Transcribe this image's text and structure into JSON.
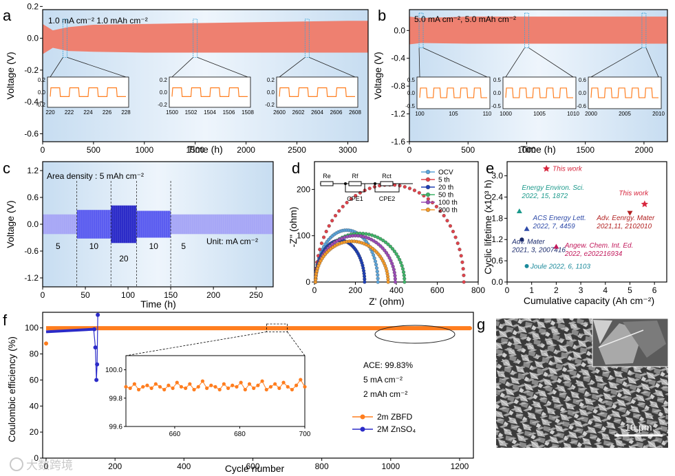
{
  "panels": {
    "a": {
      "letter": "a"
    },
    "b": {
      "letter": "b"
    },
    "c": {
      "letter": "c"
    },
    "d": {
      "letter": "d"
    },
    "e": {
      "letter": "e"
    },
    "f": {
      "letter": "f"
    },
    "g": {
      "letter": "g"
    }
  },
  "colors": {
    "salmon": "#ee8070",
    "orange": "#ff7d1e",
    "blue": "#2b2bc8",
    "bg_blue": "#cfe2f3",
    "bg_blue_light": "#eef5fc",
    "purple": "#5a5cf0",
    "lavender": "#a6a6f6"
  },
  "chart_data": [
    {
      "id": "a",
      "type": "line",
      "annotation": "1.0 mA cm⁻² 1.0 mAh cm⁻²",
      "xlabel": "Time (h)",
      "ylabel": "Voltage (V)",
      "xlim": [
        0,
        3200
      ],
      "ylim": [
        -0.65,
        0.18
      ],
      "xticks": [
        0,
        500,
        1000,
        1500,
        2000,
        2500,
        3000
      ],
      "yticks": [
        -0.6,
        -0.4,
        -0.2,
        0.0,
        0.2
      ],
      "yticklabels": [
        "-0.6",
        "-0.4",
        "-0.2",
        "0.0",
        "0.2"
      ],
      "envelope": {
        "x": [
          0,
          100,
          250,
          500,
          1000,
          1500,
          2000,
          2500,
          3000,
          3200
        ],
        "upper": [
          0.09,
          0.05,
          0.07,
          0.085,
          0.09,
          0.095,
          0.1,
          0.105,
          0.11,
          0.11
        ],
        "lower": [
          -0.1,
          -0.06,
          -0.08,
          -0.085,
          -0.09,
          -0.09,
          -0.09,
          -0.09,
          -0.09,
          -0.09
        ]
      },
      "insets": [
        {
          "xlim": [
            220,
            228
          ],
          "xticks": [
            "220",
            "222",
            "224",
            "226",
            "228"
          ],
          "yticks": [
            "0.2",
            "0.0",
            "-0.2"
          ],
          "amp": 0.1
        },
        {
          "xlim": [
            1500,
            1508
          ],
          "xticks": [
            "1500",
            "1502",
            "1504",
            "1506",
            "1508"
          ],
          "yticks": [
            "0.2",
            "0.0",
            "-0.2"
          ],
          "amp": 0.1
        },
        {
          "xlim": [
            2600,
            2608
          ],
          "xticks": [
            "2600",
            "2602",
            "2604",
            "2606",
            "2608"
          ],
          "yticks": [
            "0.2",
            "0.0",
            "-0.2"
          ],
          "amp": 0.1
        }
      ]
    },
    {
      "id": "b",
      "type": "line",
      "annotation": "5.0 mA cm⁻², 5.0 mAh cm⁻²",
      "xlabel": "Time (h)",
      "ylabel": "Voltage (V)",
      "xlim": [
        0,
        2200
      ],
      "ylim": [
        -1.6,
        0.3
      ],
      "xticks": [
        0,
        500,
        1000,
        1500,
        2000
      ],
      "yticks": [
        -1.6,
        -1.2,
        -0.8,
        -0.4,
        0.0
      ],
      "yticklabels": [
        "-1.6",
        "-1.2",
        "-0.8",
        "-0.4",
        "0.0"
      ],
      "envelope": {
        "x": [
          0,
          100,
          500,
          1000,
          1500,
          2000,
          2200
        ],
        "upper": [
          0.2,
          0.18,
          0.2,
          0.2,
          0.2,
          0.2,
          0.2
        ],
        "lower": [
          -0.2,
          -0.18,
          -0.19,
          -0.19,
          -0.19,
          -0.19,
          -0.19
        ]
      },
      "insets": [
        {
          "xlim": [
            100,
            110
          ],
          "xticks": [
            "100",
            "105",
            "110"
          ],
          "yticks": [
            "0.5",
            "0.0",
            "-0.5"
          ]
        },
        {
          "xlim": [
            1000,
            1010
          ],
          "xticks": [
            "1000",
            "1005",
            "1010"
          ],
          "yticks": [
            "0.5",
            "0.0",
            "-0.5"
          ]
        },
        {
          "xlim": [
            2000,
            2010
          ],
          "xticks": [
            "2000",
            "2005",
            "2010"
          ],
          "yticks": [
            "0.6",
            "0.0",
            "-0.6"
          ]
        }
      ]
    },
    {
      "id": "c",
      "type": "line",
      "annotation": "Area density : 5 mAh cm⁻²",
      "unit_label": "Unit: mA cm⁻²",
      "xlabel": "Time (h)",
      "ylabel": "Voltage (V)",
      "xlim": [
        0,
        270
      ],
      "ylim": [
        -1.4,
        1.4
      ],
      "xticks": [
        0,
        50,
        100,
        150,
        200,
        250
      ],
      "yticks": [
        -1.2,
        -0.6,
        0.0,
        0.6,
        1.2
      ],
      "yticklabels": [
        "-1.2",
        "-0.6",
        "0.0",
        "0.6",
        "1.2"
      ],
      "segments": [
        {
          "x0": 0,
          "x1": 40,
          "rate": "5",
          "amp": 0.22,
          "color": "#a6a6f6"
        },
        {
          "x0": 40,
          "x1": 80,
          "rate": "10",
          "amp": 0.32,
          "color": "#5a5cf0"
        },
        {
          "x0": 80,
          "x1": 110,
          "rate": "20",
          "amp": 0.42,
          "color": "#2b2bc8"
        },
        {
          "x0": 110,
          "x1": 150,
          "rate": "10",
          "amp": 0.3,
          "color": "#5a5cf0"
        },
        {
          "x0": 150,
          "x1": 270,
          "rate": "5",
          "amp": 0.22,
          "color": "#a6a6f6"
        }
      ]
    },
    {
      "id": "d",
      "type": "line",
      "xlabel": "Z' (ohm)",
      "ylabel": "-Z'' (ohm)",
      "xlim": [
        0,
        800
      ],
      "ylim": [
        0,
        260
      ],
      "xticks": [
        0,
        200,
        400,
        600,
        800
      ],
      "yticks": [
        0,
        100,
        200
      ],
      "circuit_labels": [
        "Re",
        "Rf",
        "Rct",
        "CPE1",
        "CPE2"
      ],
      "series": [
        {
          "name": "OCV",
          "color": "#5ba3d9",
          "x0": 5,
          "x1": 310,
          "h": 112
        },
        {
          "name": "5 th",
          "color": "#e0434b",
          "x0": 5,
          "x1": 730,
          "h": 210
        },
        {
          "name": "20 th",
          "color": "#1f3fb4",
          "x0": 5,
          "x1": 245,
          "h": 90
        },
        {
          "name": "50 th",
          "color": "#3fb368",
          "x0": 5,
          "x1": 440,
          "h": 105
        },
        {
          "name": "100 th",
          "color": "#9a4ab5",
          "x0": 5,
          "x1": 395,
          "h": 100
        },
        {
          "name": "200 th",
          "color": "#f39a2a",
          "x0": 5,
          "x1": 360,
          "h": 88
        }
      ]
    },
    {
      "id": "e",
      "type": "scatter",
      "xlabel": "Cumulative capacity (Ah cm⁻²)",
      "ylabel": "Cyclic lifetime (x10³ h)",
      "xlim": [
        0,
        6.5
      ],
      "ylim": [
        0,
        3.4
      ],
      "xticks": [
        0,
        1,
        2,
        3,
        4,
        5,
        6
      ],
      "yticks": [
        0.0,
        0.6,
        1.2,
        1.8,
        2.4,
        3.0
      ],
      "yticklabels": [
        "0.0",
        "0.6",
        "1.2",
        "1.8",
        "2.4",
        "3.0"
      ],
      "points": [
        {
          "x": 1.6,
          "y": 3.2,
          "marker": "star",
          "color": "#d7263d",
          "label": [
            "This work"
          ],
          "lx": 1.85,
          "ly": 3.14
        },
        {
          "x": 5.6,
          "y": 2.2,
          "marker": "star",
          "color": "#d7263d",
          "label": [
            "This work"
          ],
          "lx": 4.55,
          "ly": 2.45
        },
        {
          "x": 0.5,
          "y": 2.0,
          "marker": "triangle",
          "color": "#1b998b",
          "label": [
            "Energy Environ. Sci.",
            "2022, 15, 1872"
          ],
          "lx": 0.6,
          "ly": 2.6
        },
        {
          "x": 0.8,
          "y": 1.5,
          "marker": "triangle",
          "color": "#2e4aa8",
          "label": [
            "ACS Energy Lett.",
            "2022, 7, 4459"
          ],
          "lx": 1.05,
          "ly": 1.75
        },
        {
          "x": 5.0,
          "y": 1.95,
          "marker": "tri-down",
          "color": "#b22222",
          "label": [
            "Adv. Eenrgy. Mater",
            "2021,11, 2102010"
          ],
          "lx": 3.65,
          "ly": 1.75
        },
        {
          "x": 0.6,
          "y": 1.2,
          "marker": "circle",
          "color": "#1a2a6c",
          "label": [
            "Adv. Mater",
            "2021, 3, 2007416"
          ],
          "lx": 0.2,
          "ly": 1.08
        },
        {
          "x": 2.0,
          "y": 1.0,
          "marker": "triangle",
          "color": "#c2185b",
          "label": [
            "Angew. Chem. Int. Ed.",
            "2022, e202216934"
          ],
          "lx": 2.35,
          "ly": 0.97
        },
        {
          "x": 0.8,
          "y": 0.45,
          "marker": "circle",
          "color": "#1b8a9b",
          "label": [
            "Joule 2022, 6, 1103"
          ],
          "lx": 0.95,
          "ly": 0.38
        }
      ]
    },
    {
      "id": "f",
      "type": "scatter",
      "xlabel": "Cycle number",
      "ylabel": "Coulombic efficiency (%)",
      "xlim": [
        -10,
        1240
      ],
      "ylim": [
        0,
        112
      ],
      "xticks": [
        0,
        200,
        400,
        600,
        800,
        1000,
        1200
      ],
      "yticks": [
        0,
        20,
        40,
        60,
        80,
        100
      ],
      "annotations": [
        "ACE: 99.83%",
        "5 mA cm⁻²",
        "2 mAh cm⁻²"
      ],
      "series": [
        {
          "name": "2m ZBFD",
          "color": "#ff7d1e",
          "x_start": 0,
          "x_end": 1230,
          "y": 99.8
        },
        {
          "name": "2M ZnSO₄",
          "color": "#2b2bc8",
          "x_start": 0,
          "x_end": 150,
          "y": 99
        }
      ],
      "inset": {
        "xlim": [
          645,
          700
        ],
        "ylim": [
          99.6,
          100.1
        ],
        "xticks": [
          660,
          680,
          700
        ],
        "yticks": [
          99.6,
          99.8,
          100.0
        ],
        "yticklabels": [
          "99.6",
          "99.8",
          "100.0"
        ],
        "y": [
          99.88,
          99.87,
          99.9,
          99.86,
          99.88,
          99.89,
          99.87,
          99.9,
          99.88,
          99.86,
          99.89,
          99.87,
          99.91,
          99.88,
          99.87,
          99.9,
          99.86,
          99.88,
          99.92,
          99.87,
          99.89,
          99.88,
          99.86,
          99.9,
          99.87,
          99.89,
          99.88,
          99.91,
          99.86,
          99.9,
          99.87,
          99.89,
          99.92,
          99.86,
          99.88,
          99.9,
          99.87,
          99.91,
          99.88,
          99.86,
          99.89,
          99.93,
          99.88
        ]
      }
    }
  ],
  "panel_g": {
    "scale_label": "10 μm"
  },
  "watermark": "大数跨境"
}
